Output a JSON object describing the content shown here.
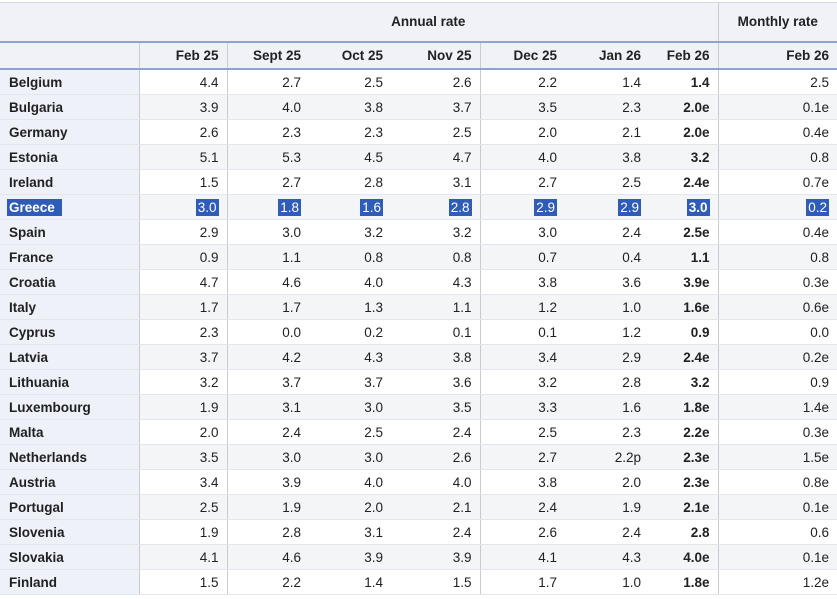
{
  "colors": {
    "divider_blue": "#8ba4d3",
    "selection_blue": "#2e5cb8",
    "header_bg": "#f0f2f7",
    "country_col_bg": "#eef1f8",
    "stripe_bg": "#f3f5f7",
    "column_grid_grey": "#c8ccd2",
    "row_line_grey": "#e3e6ea",
    "text": "#202122"
  },
  "chart_data": {
    "type": "table",
    "column_groups": [
      {
        "label": "Annual rate",
        "span": 7
      },
      {
        "label": "Monthly rate",
        "span": 1
      }
    ],
    "annual_columns": [
      "Feb 25",
      "Sept 25",
      "Oct 25",
      "Nov 25",
      "Dec 25",
      "Jan 26",
      "Feb 26"
    ],
    "monthly_column": "Feb 26",
    "selected_row": "Greece",
    "rows": [
      {
        "country": "Belgium",
        "selected": false,
        "values": [
          "4.4",
          "2.7",
          "2.5",
          "2.6",
          "2.2",
          "1.4",
          "1.4",
          "2.5"
        ]
      },
      {
        "country": "Bulgaria",
        "selected": false,
        "values": [
          "3.9",
          "4.0",
          "3.8",
          "3.7",
          "3.5",
          "2.3",
          "2.0e",
          "0.1e"
        ]
      },
      {
        "country": "Germany",
        "selected": false,
        "values": [
          "2.6",
          "2.3",
          "2.3",
          "2.5",
          "2.0",
          "2.1",
          "2.0e",
          "0.4e"
        ]
      },
      {
        "country": "Estonia",
        "selected": false,
        "values": [
          "5.1",
          "5.3",
          "4.5",
          "4.7",
          "4.0",
          "3.8",
          "3.2",
          "0.8"
        ]
      },
      {
        "country": "Ireland",
        "selected": false,
        "values": [
          "1.5",
          "2.7",
          "2.8",
          "3.1",
          "2.7",
          "2.5",
          "2.4e",
          "0.7e"
        ]
      },
      {
        "country": "Greece",
        "selected": true,
        "values": [
          "3.0",
          "1.8",
          "1.6",
          "2.8",
          "2.9",
          "2.9",
          "3.0",
          "0.2"
        ]
      },
      {
        "country": "Spain",
        "selected": false,
        "values": [
          "2.9",
          "3.0",
          "3.2",
          "3.2",
          "3.0",
          "2.4",
          "2.5e",
          "0.4e"
        ]
      },
      {
        "country": "France",
        "selected": false,
        "values": [
          "0.9",
          "1.1",
          "0.8",
          "0.8",
          "0.7",
          "0.4",
          "1.1",
          "0.8"
        ]
      },
      {
        "country": "Croatia",
        "selected": false,
        "values": [
          "4.7",
          "4.6",
          "4.0",
          "4.3",
          "3.8",
          "3.6",
          "3.9e",
          "0.3e"
        ]
      },
      {
        "country": "Italy",
        "selected": false,
        "values": [
          "1.7",
          "1.7",
          "1.3",
          "1.1",
          "1.2",
          "1.0",
          "1.6e",
          "0.6e"
        ]
      },
      {
        "country": "Cyprus",
        "selected": false,
        "values": [
          "2.3",
          "0.0",
          "0.2",
          "0.1",
          "0.1",
          "1.2",
          "0.9",
          "0.0"
        ]
      },
      {
        "country": "Latvia",
        "selected": false,
        "values": [
          "3.7",
          "4.2",
          "4.3",
          "3.8",
          "3.4",
          "2.9",
          "2.4e",
          "0.2e"
        ]
      },
      {
        "country": "Lithuania",
        "selected": false,
        "values": [
          "3.2",
          "3.7",
          "3.7",
          "3.6",
          "3.2",
          "2.8",
          "3.2",
          "0.9"
        ]
      },
      {
        "country": "Luxembourg",
        "selected": false,
        "values": [
          "1.9",
          "3.1",
          "3.0",
          "3.5",
          "3.3",
          "1.6",
          "1.8e",
          "1.4e"
        ]
      },
      {
        "country": "Malta",
        "selected": false,
        "values": [
          "2.0",
          "2.4",
          "2.5",
          "2.4",
          "2.5",
          "2.3",
          "2.2e",
          "0.3e"
        ]
      },
      {
        "country": "Netherlands",
        "selected": false,
        "values": [
          "3.5",
          "3.0",
          "3.0",
          "2.6",
          "2.7",
          "2.2p",
          "2.3e",
          "1.5e"
        ]
      },
      {
        "country": "Austria",
        "selected": false,
        "values": [
          "3.4",
          "3.9",
          "4.0",
          "4.0",
          "3.8",
          "2.0",
          "2.3e",
          "0.8e"
        ]
      },
      {
        "country": "Portugal",
        "selected": false,
        "values": [
          "2.5",
          "1.9",
          "2.0",
          "2.1",
          "2.4",
          "1.9",
          "2.1e",
          "0.1e"
        ]
      },
      {
        "country": "Slovenia",
        "selected": false,
        "values": [
          "1.9",
          "2.8",
          "3.1",
          "2.4",
          "2.6",
          "2.4",
          "2.8",
          "0.6"
        ]
      },
      {
        "country": "Slovakia",
        "selected": false,
        "values": [
          "4.1",
          "4.6",
          "3.9",
          "3.9",
          "4.1",
          "4.3",
          "4.0e",
          "0.1e"
        ]
      },
      {
        "country": "Finland",
        "selected": false,
        "values": [
          "1.5",
          "2.2",
          "1.4",
          "1.5",
          "1.7",
          "1.0",
          "1.8e",
          "1.2e"
        ]
      }
    ]
  }
}
